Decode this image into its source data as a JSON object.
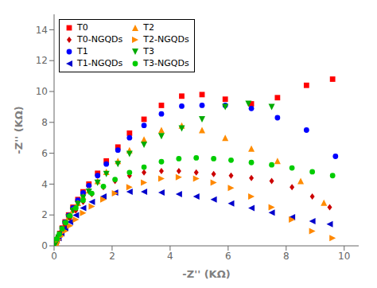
{
  "chart_data": {
    "type": "scatter",
    "title": "",
    "xlabel": "-Z'' (KΩ)",
    "ylabel": "-Z'' (KΩ)",
    "xlim": [
      0,
      10.5
    ],
    "ylim": [
      0,
      15
    ],
    "xticks": [
      0,
      2,
      4,
      6,
      8,
      10
    ],
    "yticks": [
      0,
      2,
      4,
      6,
      8,
      10,
      12,
      14
    ],
    "grid": false,
    "legend": "upper left",
    "series": [
      {
        "name": "T0",
        "color": "#ff0000",
        "marker": "square",
        "x": [
          0.02,
          0.04,
          0.07,
          0.1,
          0.15,
          0.2,
          0.28,
          0.38,
          0.5,
          0.65,
          0.82,
          1.0,
          1.2,
          1.5,
          1.8,
          2.2,
          2.6,
          3.1,
          3.7,
          4.4,
          5.1,
          5.9,
          6.8,
          7.7,
          8.7,
          9.6
        ],
        "values": [
          0.05,
          0.12,
          0.22,
          0.35,
          0.55,
          0.8,
          1.15,
          1.55,
          2.0,
          2.5,
          3.0,
          3.5,
          4.0,
          4.7,
          5.5,
          6.4,
          7.3,
          8.2,
          9.1,
          9.7,
          9.8,
          9.5,
          9.2,
          9.6,
          10.4,
          10.8
        ]
      },
      {
        "name": "T1",
        "color": "#0000ff",
        "marker": "circle",
        "x": [
          0.02,
          0.04,
          0.07,
          0.1,
          0.15,
          0.2,
          0.28,
          0.38,
          0.5,
          0.65,
          0.82,
          1.0,
          1.2,
          1.5,
          1.8,
          2.2,
          2.6,
          3.1,
          3.7,
          4.4,
          5.1,
          5.9,
          6.8,
          7.7,
          8.7,
          9.7
        ],
        "values": [
          0.05,
          0.12,
          0.22,
          0.35,
          0.55,
          0.78,
          1.12,
          1.52,
          1.97,
          2.45,
          2.95,
          3.43,
          3.9,
          4.55,
          5.3,
          6.2,
          7.0,
          7.8,
          8.55,
          9.05,
          9.1,
          9.1,
          8.9,
          8.3,
          7.5,
          5.8
        ]
      },
      {
        "name": "T2",
        "color": "#ff8c00",
        "marker": "triangle-up",
        "x": [
          0.02,
          0.04,
          0.07,
          0.1,
          0.15,
          0.2,
          0.28,
          0.38,
          0.5,
          0.65,
          0.82,
          1.0,
          1.2,
          1.5,
          1.8,
          2.2,
          2.6,
          3.1,
          3.7,
          4.4,
          5.1,
          5.9,
          6.8,
          7.7,
          8.5,
          9.3
        ],
        "values": [
          0.05,
          0.12,
          0.22,
          0.35,
          0.54,
          0.75,
          1.08,
          1.46,
          1.88,
          2.33,
          2.78,
          3.2,
          3.6,
          4.2,
          4.8,
          5.5,
          6.2,
          6.9,
          7.5,
          7.8,
          7.5,
          7.0,
          6.3,
          5.5,
          4.2,
          2.8
        ]
      },
      {
        "name": "T3",
        "color": "#00aa00",
        "marker": "triangle-down",
        "x": [
          0.02,
          0.04,
          0.07,
          0.1,
          0.15,
          0.2,
          0.28,
          0.38,
          0.5,
          0.65,
          0.82,
          1.0,
          1.2,
          1.5,
          1.8,
          2.2,
          2.6,
          3.1,
          3.7,
          4.4,
          5.1,
          5.9,
          6.7,
          7.5
        ],
        "values": [
          0.05,
          0.12,
          0.22,
          0.35,
          0.53,
          0.73,
          1.05,
          1.42,
          1.83,
          2.27,
          2.7,
          3.12,
          3.5,
          4.08,
          4.65,
          5.3,
          5.95,
          6.55,
          7.1,
          7.6,
          8.2,
          9.0,
          9.2,
          9.0
        ]
      },
      {
        "name": "T0-NGQDs",
        "color": "#cc0000",
        "marker": "diamond",
        "x": [
          0.15,
          0.25,
          0.38,
          0.55,
          0.75,
          1.0,
          1.3,
          1.7,
          2.1,
          2.6,
          3.1,
          3.7,
          4.3,
          4.9,
          5.5,
          6.1,
          6.8,
          7.5,
          8.2,
          8.9,
          9.5
        ],
        "values": [
          0.6,
          0.95,
          1.35,
          1.8,
          2.3,
          2.85,
          3.35,
          3.8,
          4.2,
          4.55,
          4.75,
          4.85,
          4.85,
          4.75,
          4.65,
          4.55,
          4.4,
          4.2,
          3.8,
          3.2,
          2.5
        ]
      },
      {
        "name": "T1-NGQDs",
        "color": "#0000cc",
        "marker": "triangle-left",
        "x": [
          0.15,
          0.25,
          0.38,
          0.55,
          0.75,
          1.0,
          1.3,
          1.7,
          2.1,
          2.6,
          3.1,
          3.7,
          4.3,
          4.9,
          5.5,
          6.1,
          6.8,
          7.5,
          8.2,
          8.9,
          9.5
        ],
        "values": [
          0.5,
          0.8,
          1.15,
          1.55,
          1.98,
          2.45,
          2.85,
          3.2,
          3.45,
          3.5,
          3.5,
          3.45,
          3.35,
          3.2,
          3.0,
          2.75,
          2.45,
          2.15,
          1.85,
          1.6,
          1.4
        ]
      },
      {
        "name": "T2-NGQDs",
        "color": "#ff8800",
        "marker": "triangle-right",
        "x": [
          0.15,
          0.25,
          0.38,
          0.55,
          0.75,
          1.0,
          1.3,
          1.7,
          2.1,
          2.6,
          3.1,
          3.7,
          4.3,
          4.9,
          5.5,
          6.1,
          6.8,
          7.5,
          8.2,
          8.9,
          9.6
        ],
        "values": [
          0.4,
          0.65,
          0.95,
          1.3,
          1.7,
          2.12,
          2.55,
          3.0,
          3.4,
          3.8,
          4.1,
          4.35,
          4.45,
          4.35,
          4.1,
          3.75,
          3.2,
          2.5,
          1.7,
          0.95,
          0.5
        ]
      },
      {
        "name": "T3-NGQDs",
        "color": "#00cc00",
        "marker": "circle",
        "x": [
          0.1,
          0.18,
          0.28,
          0.4,
          0.55,
          0.75,
          1.0,
          1.3,
          1.7,
          2.1,
          2.6,
          3.1,
          3.7,
          4.3,
          4.9,
          5.5,
          6.1,
          6.8,
          7.5,
          8.2,
          8.9,
          9.6
        ],
        "values": [
          0.45,
          0.75,
          1.1,
          1.5,
          1.95,
          2.45,
          2.95,
          3.4,
          3.85,
          4.3,
          4.75,
          5.1,
          5.45,
          5.65,
          5.7,
          5.65,
          5.55,
          5.4,
          5.25,
          5.05,
          4.8,
          4.55
        ]
      }
    ]
  }
}
